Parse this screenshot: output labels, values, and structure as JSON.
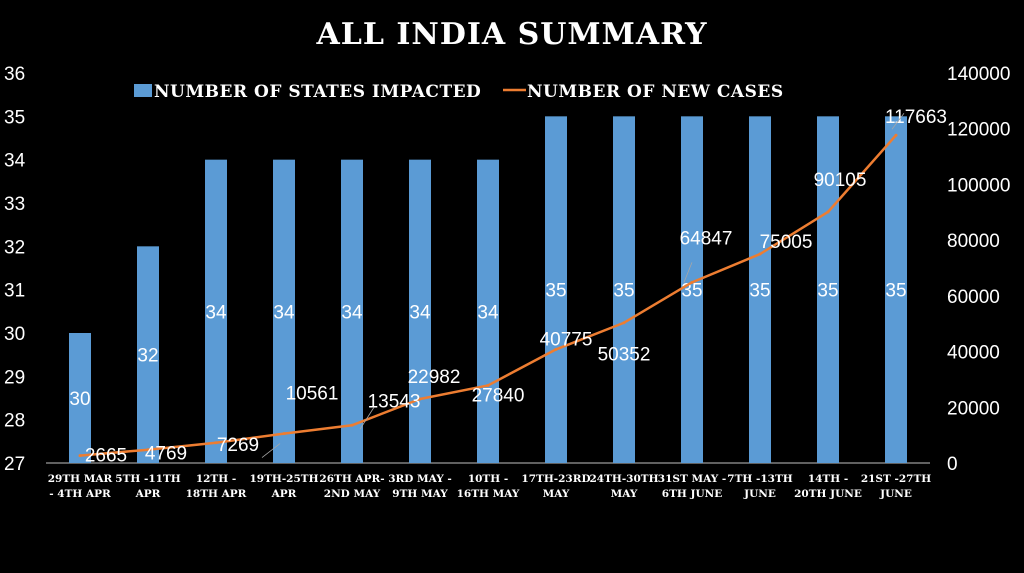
{
  "colors": {
    "bar": "#5b9bd5",
    "line": "#ed7d31",
    "background": "#000000",
    "text": "#ffffff"
  },
  "chart_data": {
    "type": "bar",
    "title": "ALL INDIA  SUMMARY",
    "categories": [
      [
        "29TH MAR",
        "- 4TH APR"
      ],
      [
        "5TH -11TH",
        "APR"
      ],
      [
        "12TH -",
        "18TH APR"
      ],
      [
        "19TH-25TH",
        "APR"
      ],
      [
        "26TH APR-",
        "2ND MAY"
      ],
      [
        "3RD MAY -",
        "9TH MAY"
      ],
      [
        "10TH -",
        "16TH MAY"
      ],
      [
        "17TH-23RD",
        "MAY"
      ],
      [
        "24TH-30TH",
        "MAY"
      ],
      [
        "31ST MAY -",
        "6TH JUNE"
      ],
      [
        "7TH -13TH",
        "JUNE"
      ],
      [
        "14TH -",
        "20TH JUNE"
      ],
      [
        "21ST -27TH",
        "JUNE"
      ]
    ],
    "series": [
      {
        "name": "NUMBER OF STATES IMPACTED",
        "type": "bar",
        "axis": "left",
        "values": [
          30,
          32,
          34,
          34,
          34,
          34,
          34,
          35,
          35,
          35,
          35,
          35,
          35
        ]
      },
      {
        "name": "NUMBER OF NEW CASES",
        "type": "line",
        "axis": "right",
        "values": [
          2665,
          4769,
          7269,
          10561,
          13543,
          22982,
          27840,
          40775,
          50352,
          64847,
          75005,
          90105,
          117663
        ]
      }
    ],
    "y_left": {
      "min": 27,
      "max": 36,
      "step": 1,
      "ticks": [
        "27",
        "28",
        "29",
        "30",
        "31",
        "32",
        "33",
        "34",
        "35",
        "36"
      ]
    },
    "y_right": {
      "min": 0,
      "max": 140000,
      "step": 20000,
      "ticks": [
        "0",
        "20000",
        "40000",
        "60000",
        "80000",
        "100000",
        "120000",
        "140000"
      ]
    },
    "bar_labels": [
      "30",
      "32",
      "34",
      "34",
      "34",
      "34",
      "34",
      "35",
      "35",
      "35",
      "35",
      "35",
      "35"
    ],
    "line_labels": [
      "2665",
      "4769",
      "7269",
      "10561",
      "13543",
      "22982",
      "27840",
      "40775",
      "50352",
      "64847",
      "75005",
      "90105",
      "117663"
    ],
    "legend_position": "top"
  }
}
